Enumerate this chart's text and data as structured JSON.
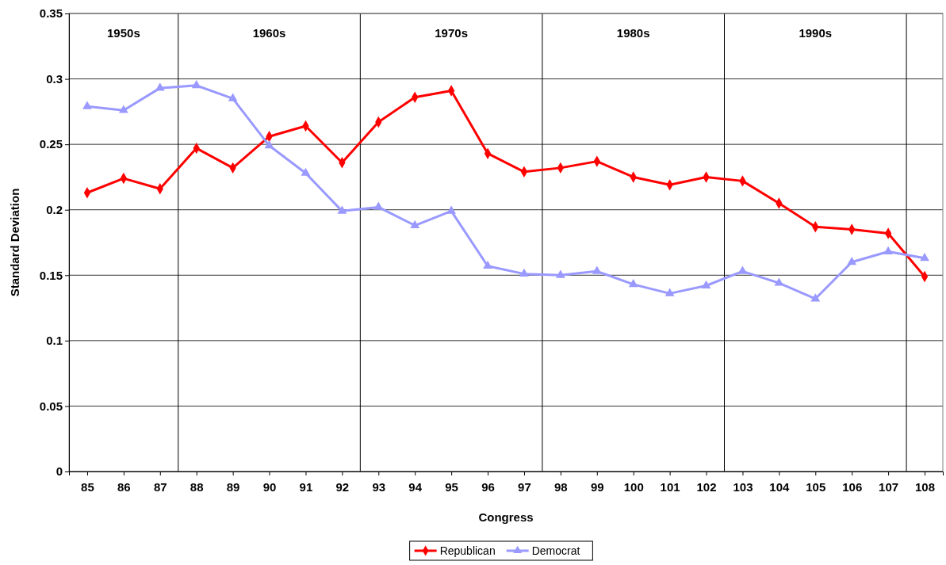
{
  "chart_data": {
    "type": "line",
    "xlabel": "Congress",
    "ylabel": "Standard Deviation",
    "x": [
      85,
      86,
      87,
      88,
      89,
      90,
      91,
      92,
      93,
      94,
      95,
      96,
      97,
      98,
      99,
      100,
      101,
      102,
      103,
      104,
      105,
      106,
      107,
      108
    ],
    "xlim": [
      84.5,
      108.5
    ],
    "xticks": [
      85,
      86,
      87,
      88,
      89,
      90,
      91,
      92,
      93,
      94,
      95,
      96,
      97,
      98,
      99,
      100,
      101,
      102,
      103,
      104,
      105,
      106,
      107,
      108
    ],
    "ylim": [
      0,
      0.35
    ],
    "yticks": [
      0,
      0.05,
      0.1,
      0.15,
      0.2,
      0.25,
      0.3,
      0.35
    ],
    "grid": "y",
    "legend": "bottom",
    "line_style": "solid",
    "series": [
      {
        "name": "Republican",
        "color": "#ff0000",
        "marker": "diamond",
        "values": [
          0.213,
          0.224,
          0.216,
          0.247,
          0.232,
          0.256,
          0.264,
          0.236,
          0.267,
          0.286,
          0.291,
          0.243,
          0.229,
          0.232,
          0.237,
          0.225,
          0.219,
          0.225,
          0.222,
          0.205,
          0.187,
          0.185,
          0.182,
          0.149
        ]
      },
      {
        "name": "Democrat",
        "color": "#9999ff",
        "marker": "triangle",
        "values": [
          0.279,
          0.276,
          0.293,
          0.295,
          0.285,
          0.249,
          0.228,
          0.199,
          0.202,
          0.188,
          0.199,
          0.157,
          0.151,
          0.15,
          0.153,
          0.143,
          0.136,
          0.142,
          0.153,
          0.144,
          0.132,
          0.16,
          0.168,
          0.163
        ]
      }
    ],
    "ref_lines": [
      {
        "axis": "x",
        "value": 87.5,
        "color": "#000000"
      },
      {
        "axis": "x",
        "value": 92.5,
        "color": "#000000"
      },
      {
        "axis": "x",
        "value": 97.5,
        "color": "#000000"
      },
      {
        "axis": "x",
        "value": 102.5,
        "color": "#000000"
      },
      {
        "axis": "x",
        "value": 107.5,
        "color": "#000000"
      }
    ],
    "annotations": [
      "1950s",
      "1960s",
      "1970s",
      "1980s",
      "1990s"
    ]
  }
}
